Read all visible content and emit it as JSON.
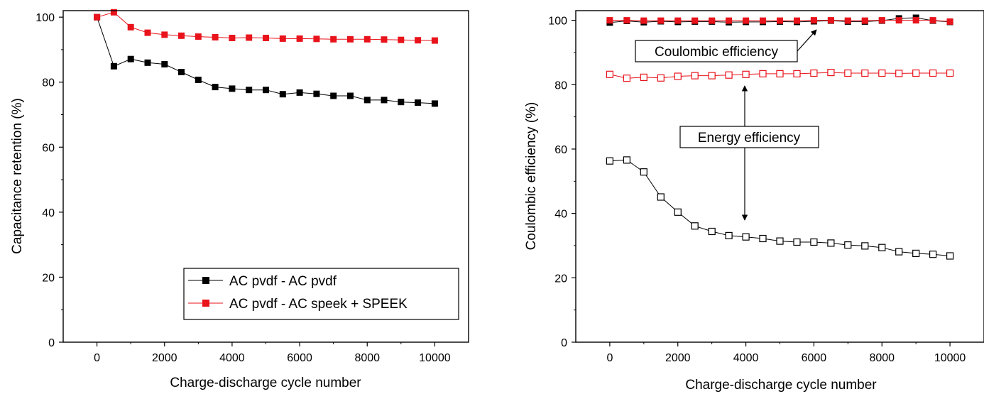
{
  "chart_data": [
    {
      "type": "line",
      "xlabel": "Charge-discharge cycle number",
      "ylabel": "Capacitance retention (%)",
      "xlim": [
        -1000,
        11000
      ],
      "ylim": [
        0,
        102
      ],
      "xticks": [
        0,
        2000,
        4000,
        6000,
        8000,
        10000
      ],
      "yticks": [
        0,
        20,
        40,
        60,
        80,
        100
      ],
      "legend_position": "bottom-right",
      "series": [
        {
          "name": "AC pvdf - AC pvdf",
          "color": "#000000",
          "marker": "filled-square",
          "x": [
            0,
            500,
            1000,
            1500,
            2000,
            2500,
            3000,
            3500,
            4000,
            4500,
            5000,
            5500,
            6000,
            6500,
            7000,
            7500,
            8000,
            8500,
            9000,
            9500,
            10000
          ],
          "y": [
            100,
            84.9,
            87.1,
            86.0,
            85.5,
            83.1,
            80.7,
            78.5,
            78.0,
            77.6,
            77.6,
            76.3,
            76.8,
            76.4,
            75.8,
            75.8,
            74.5,
            74.5,
            73.9,
            73.7,
            73.4
          ]
        },
        {
          "name": "AC pvdf - AC speek + SPEEK",
          "color": "#e8131b",
          "marker": "filled-square",
          "x": [
            0,
            500,
            1000,
            1500,
            2000,
            2500,
            3000,
            3500,
            4000,
            4500,
            5000,
            5500,
            6000,
            6500,
            7000,
            7500,
            8000,
            8500,
            9000,
            9500,
            10000
          ],
          "y": [
            100,
            101.5,
            96.9,
            95.2,
            94.6,
            94.3,
            94.0,
            93.8,
            93.6,
            93.7,
            93.6,
            93.4,
            93.4,
            93.3,
            93.2,
            93.2,
            93.2,
            93.1,
            93.0,
            92.9,
            92.8
          ]
        }
      ]
    },
    {
      "type": "line",
      "xlabel": "Charge-discharge cycle number",
      "ylabel": "Coulombic efficiency (%)",
      "xlim": [
        -1000,
        11000
      ],
      "ylim": [
        0,
        103
      ],
      "xticks": [
        0,
        2000,
        4000,
        6000,
        8000,
        10000
      ],
      "yticks": [
        0,
        20,
        40,
        60,
        80,
        100
      ],
      "annotations": [
        "Coulombic efficiency",
        "Energy efficiency"
      ],
      "series": [
        {
          "color": "#000000",
          "marker": "filled-square",
          "x": [
            0,
            500,
            1000,
            1500,
            2000,
            2500,
            3000,
            3500,
            4000,
            4500,
            5000,
            5500,
            6000,
            6500,
            7000,
            7500,
            8000,
            8500,
            9000,
            9500,
            10000
          ],
          "y": [
            99.3,
            99.8,
            99.4,
            99.7,
            99.5,
            99.6,
            99.6,
            99.4,
            99.5,
            99.5,
            99.6,
            99.5,
            99.7,
            99.9,
            99.6,
            99.6,
            99.9,
            100.6,
            100.8,
            99.9,
            99.5
          ]
        },
        {
          "color": "#e8131b",
          "marker": "filled-square",
          "x": [
            0,
            500,
            1000,
            1500,
            2000,
            2500,
            3000,
            3500,
            4000,
            4500,
            5000,
            5500,
            6000,
            6500,
            7000,
            7500,
            8000,
            8500,
            9000,
            9500,
            10000
          ],
          "y": [
            100.0,
            100.0,
            99.9,
            99.9,
            99.9,
            99.9,
            99.9,
            99.9,
            99.9,
            99.9,
            99.9,
            99.9,
            100.0,
            100.0,
            99.9,
            99.9,
            100.0,
            100.0,
            100.0,
            100.0,
            99.6
          ]
        },
        {
          "color": "#e8131b",
          "marker": "open-square",
          "x": [
            0,
            500,
            1000,
            1500,
            2000,
            2500,
            3000,
            3500,
            4000,
            4500,
            5000,
            5500,
            6000,
            6500,
            7000,
            7500,
            8000,
            8500,
            9000,
            9500,
            10000
          ],
          "y": [
            83.2,
            82.0,
            82.3,
            82.1,
            82.6,
            82.8,
            82.8,
            83.0,
            83.2,
            83.4,
            83.4,
            83.4,
            83.6,
            83.8,
            83.6,
            83.6,
            83.6,
            83.5,
            83.6,
            83.6,
            83.6
          ]
        },
        {
          "color": "#000000",
          "marker": "open-square",
          "x": [
            0,
            500,
            1000,
            1500,
            2000,
            2500,
            3000,
            3500,
            4000,
            4500,
            5000,
            5500,
            6000,
            6500,
            7000,
            7500,
            8000,
            8500,
            9000,
            9500,
            10000
          ],
          "y": [
            56.3,
            56.6,
            52.9,
            45.1,
            40.4,
            36.1,
            34.4,
            33.1,
            32.7,
            32.2,
            31.4,
            31.1,
            31.1,
            30.8,
            30.2,
            29.9,
            29.4,
            28.1,
            27.6,
            27.3,
            26.8
          ]
        }
      ]
    }
  ]
}
